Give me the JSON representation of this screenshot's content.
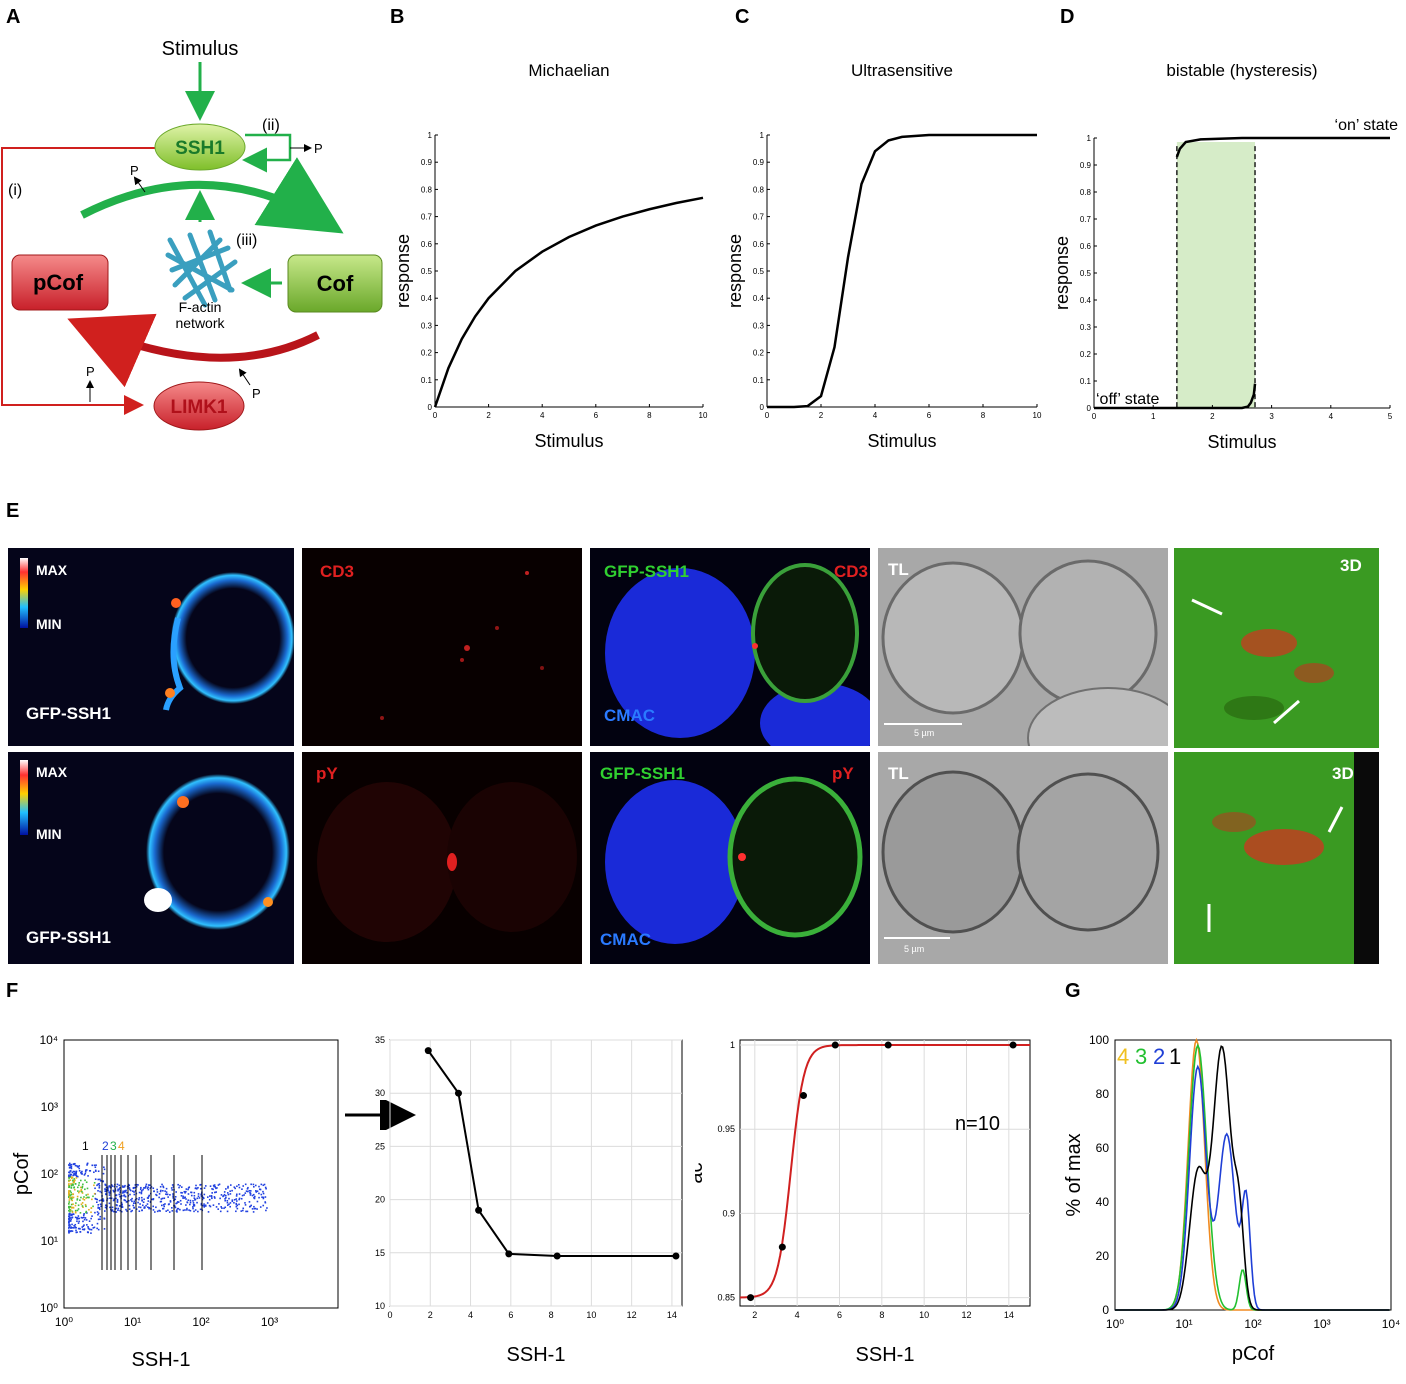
{
  "panel_labels": {
    "A": "A",
    "B": "B",
    "C": "C",
    "D": "D",
    "E": "E",
    "F": "F",
    "G": "G"
  },
  "diagram": {
    "stimulus": "Stimulus",
    "ssh1": "SSH1",
    "pcof": "pCof",
    "cof": "Cof",
    "limk1": "LIMK1",
    "factin_1": "F-actin",
    "factin_2": "network",
    "label_i": "(i)",
    "label_ii": "(ii)",
    "label_iii": "(iii)",
    "p": "P",
    "colors": {
      "green": "#22b04a",
      "red": "#c0191e",
      "ssh1_fill": "#a8d84a",
      "pcof_fill": "#e8474c",
      "cof_fill": "#8cc63f",
      "limk1_fill": "#e8474c",
      "actin": "#3a9fbf"
    }
  },
  "panel_E": {
    "row1": {
      "max": "MAX",
      "min": "MIN",
      "gfp": "GFP-SSH1",
      "cd3": "CD3",
      "merge_gfp": "GFP-SSH1",
      "merge_red": "CD3",
      "cmac": "CMAC",
      "tl": "TL",
      "scale": "5 µm",
      "d3": "3D"
    },
    "row2": {
      "max": "MAX",
      "min": "MIN",
      "gfp": "GFP-SSH1",
      "py": "pY",
      "merge_gfp": "GFP-SSH1",
      "merge_red": "pY",
      "cmac": "CMAC",
      "tl": "TL",
      "scale": "5 µm",
      "d3": "3D"
    }
  },
  "chart_data": [
    {
      "panel": "B",
      "type": "line",
      "title": "Michaelian",
      "xlabel": "Stimulus",
      "ylabel": "response",
      "xlim": [
        0,
        10
      ],
      "ylim": [
        0,
        1
      ],
      "xticks": [
        "0",
        "2",
        "4",
        "6",
        "8",
        "10"
      ],
      "yticks": [
        "0",
        "0.1",
        "0.2",
        "0.3",
        "0.4",
        "0.5",
        "0.6",
        "0.7",
        "0.8",
        "0.9",
        "1"
      ],
      "series": [
        {
          "x": [
            0,
            0.5,
            1,
            1.5,
            2,
            3,
            4,
            5,
            6,
            7,
            8,
            9,
            10
          ],
          "y": [
            0,
            0.143,
            0.25,
            0.333,
            0.4,
            0.5,
            0.571,
            0.625,
            0.667,
            0.7,
            0.727,
            0.75,
            0.769
          ]
        }
      ]
    },
    {
      "panel": "C",
      "type": "line",
      "title": "Ultrasensitive",
      "xlabel": "Stimulus",
      "ylabel": "response",
      "xlim": [
        0,
        10
      ],
      "ylim": [
        0,
        1
      ],
      "xticks": [
        "0",
        "2",
        "4",
        "6",
        "8",
        "10"
      ],
      "yticks": [
        "0",
        "0.1",
        "0.2",
        "0.3",
        "0.4",
        "0.5",
        "0.6",
        "0.7",
        "0.8",
        "0.9",
        "1"
      ],
      "series": [
        {
          "x": [
            0,
            1,
            1.5,
            2,
            2.5,
            3,
            3.5,
            4,
            4.5,
            5,
            6,
            7,
            8,
            9,
            10
          ],
          "y": [
            0,
            0,
            0.003,
            0.04,
            0.22,
            0.55,
            0.82,
            0.94,
            0.98,
            0.993,
            1,
            1,
            1,
            1,
            1
          ]
        }
      ]
    },
    {
      "panel": "D",
      "type": "line",
      "title": "bistable (hysteresis)",
      "xlabel": "Stimulus",
      "ylabel": "response",
      "xlim": [
        0,
        5
      ],
      "ylim": [
        0,
        1
      ],
      "xticks": [
        "0",
        "1",
        "2",
        "3",
        "4",
        "5"
      ],
      "yticks": [
        "0",
        "0.1",
        "0.2",
        "0.3",
        "0.4",
        "0.5",
        "0.6",
        "0.7",
        "0.8",
        "0.9",
        "1"
      ],
      "annotations": [
        "‘on’ state",
        "‘off’ state"
      ],
      "series": [
        {
          "x": [
            0,
            2.5,
            2.6,
            2.65,
            2.7,
            2.72
          ],
          "y": [
            0,
            0,
            0.005,
            0.02,
            0.05,
            0.09
          ]
        },
        {
          "x": [
            1.4,
            1.45,
            1.55,
            1.8,
            2.5,
            3,
            4,
            5
          ],
          "y": [
            0.93,
            0.96,
            0.985,
            0.995,
            1,
            1,
            1,
            1
          ]
        }
      ],
      "bistable_range": [
        1.4,
        2.72
      ]
    },
    {
      "panel": "F1",
      "type": "scatter",
      "xlabel": "SSH-1",
      "ylabel": "pCof",
      "xticks": [
        "10⁰",
        "10¹",
        "10²",
        "10³"
      ],
      "yticks": [
        "10⁰",
        "10¹",
        "10²",
        "10³",
        "10⁴"
      ],
      "gate_labels": [
        "1",
        "2",
        "3",
        "4"
      ],
      "gate_colors": [
        "#000000",
        "#1f3fd6",
        "#22b04a",
        "#f0a020"
      ]
    },
    {
      "panel": "F2",
      "type": "line",
      "xlabel": "SSH-1",
      "ylabel": "",
      "xlim": [
        0,
        14.5
      ],
      "ylim": [
        10,
        35
      ],
      "xticks": [
        "0",
        "2",
        "4",
        "6",
        "8",
        "10",
        "12",
        "14"
      ],
      "yticks": [
        "10",
        "15",
        "20",
        "25",
        "30",
        "35"
      ],
      "series": [
        {
          "x": [
            1.9,
            3.4,
            4.4,
            5.9,
            8.3,
            14.2
          ],
          "y": [
            34,
            30,
            19,
            14.9,
            14.7,
            14.7
          ]
        }
      ]
    },
    {
      "panel": "F3",
      "type": "line",
      "xlabel": "SSH-1",
      "ylabel": "ac",
      "xlim": [
        1.3,
        15
      ],
      "ylim": [
        0.845,
        1.003
      ],
      "xticks": [
        "2",
        "4",
        "6",
        "8",
        "10",
        "12",
        "14"
      ],
      "yticks": [
        "0.85",
        "0.9",
        "0.95",
        "1"
      ],
      "annotation": "n=10",
      "series": [
        {
          "x": [
            1.8,
            3.3,
            4.3,
            5.8,
            8.3,
            14.2
          ],
          "y": [
            0.85,
            0.88,
            0.97,
            1,
            1,
            1
          ]
        }
      ]
    },
    {
      "panel": "G",
      "type": "area",
      "xlabel": "pCof",
      "ylabel": "% of max",
      "xticks": [
        "10⁰",
        "10¹",
        "10²",
        "10³",
        "10⁴"
      ],
      "yticks": [
        "0",
        "20",
        "40",
        "60",
        "80",
        "100"
      ],
      "legend": [
        "4",
        "3",
        "2",
        "1"
      ],
      "series": [
        {
          "name": "4",
          "color": "#f08a20"
        },
        {
          "name": "3",
          "color": "#22c030"
        },
        {
          "name": "2",
          "color": "#1f3fd6"
        },
        {
          "name": "1",
          "color": "#000000"
        }
      ]
    }
  ]
}
